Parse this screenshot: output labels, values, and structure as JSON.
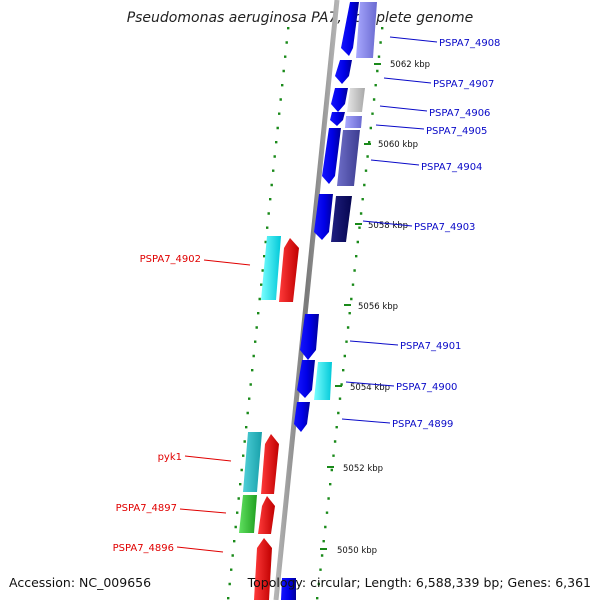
{
  "title": "Pseudomonas aeruginosa PA7, complete genome",
  "footer": {
    "accession": "Accession: NC_009656",
    "topology": "Topology: circular; Length: 6,588,339 bp; Genes: 6,361"
  },
  "axis_unit": "kbp",
  "ticks": [
    5062,
    5060,
    5058,
    5056,
    5054,
    5052,
    5050
  ],
  "colors": {
    "forward_label": "#0a0ac8",
    "reverse_label": "#e00000",
    "backbone": "#8c8c8c",
    "tick": "#1a8a1a"
  },
  "genes": {
    "forward": [
      {
        "name": "PSPA7_4908"
      },
      {
        "name": "PSPA7_4907"
      },
      {
        "name": "PSPA7_4906"
      },
      {
        "name": "PSPA7_4905"
      },
      {
        "name": "PSPA7_4904"
      },
      {
        "name": "PSPA7_4903"
      },
      {
        "name": "PSPA7_4901"
      },
      {
        "name": "PSPA7_4900"
      },
      {
        "name": "PSPA7_4899"
      }
    ],
    "reverse": [
      {
        "name": "PSPA7_4902"
      },
      {
        "name": "pyk1"
      },
      {
        "name": "PSPA7_4897"
      },
      {
        "name": "PSPA7_4896"
      }
    ]
  }
}
